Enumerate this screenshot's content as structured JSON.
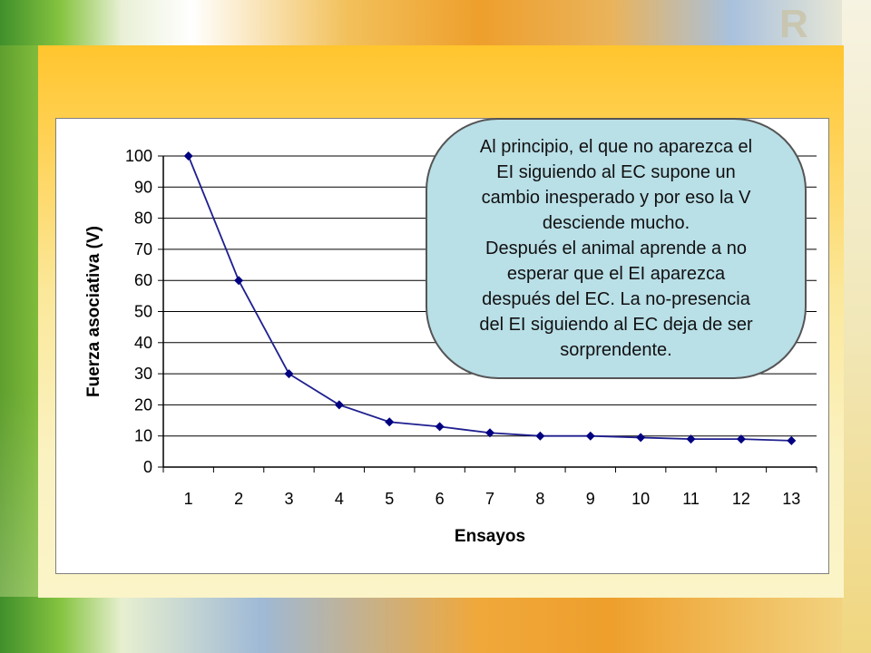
{
  "logo": {
    "text": "R"
  },
  "callout": {
    "lines": [
      "Al principio, el que no aparezca el",
      "EI siguiendo al EC supone un",
      "cambio inesperado y por eso la V",
      "desciende mucho.",
      "Después el animal aprende a no",
      "esperar que el EI aparezca",
      "después del EC. La no-presencia",
      "del EI siguiendo al EC deja de ser",
      "sorprendente."
    ]
  },
  "chart_data": {
    "type": "line",
    "title": "",
    "xlabel": "Ensayos",
    "ylabel": "Fuerza asociativa (V)",
    "categories": [
      "1",
      "2",
      "3",
      "4",
      "5",
      "6",
      "7",
      "8",
      "9",
      "10",
      "11",
      "12",
      "13"
    ],
    "series": [
      {
        "values": [
          100,
          60,
          30,
          20,
          14.5,
          13,
          11,
          10,
          10,
          9.5,
          9,
          9,
          8.5
        ]
      }
    ],
    "ylim": [
      0,
      100
    ],
    "yticks": [
      0,
      10,
      20,
      30,
      40,
      50,
      60,
      70,
      80,
      90,
      100
    ],
    "grid": "horizontal",
    "legend": "none",
    "colors": {
      "line": "#1f1f8f",
      "marker": "#000080",
      "grid": "#000000"
    }
  }
}
